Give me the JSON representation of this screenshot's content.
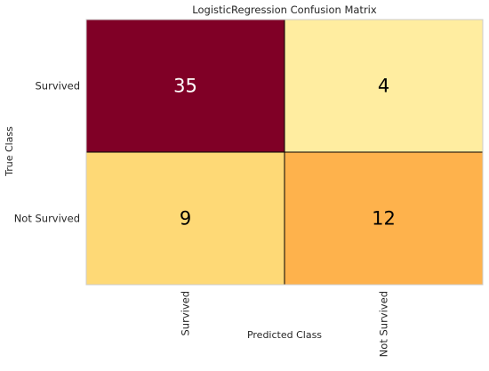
{
  "chart_data": {
    "type": "heatmap",
    "title": "LogisticRegression Confusion Matrix",
    "xlabel": "Predicted Class",
    "ylabel": "True Class",
    "x_categories": [
      "Survived",
      "Not Survived"
    ],
    "y_categories": [
      "Survived",
      "Not Survived"
    ],
    "values": [
      [
        35,
        4
      ],
      [
        9,
        12
      ]
    ],
    "colormap": "YlOrRd",
    "cell_colors": [
      [
        "#800026",
        "#ffeda0"
      ],
      [
        "#fed976",
        "#feb24c"
      ]
    ],
    "cell_text_colors": [
      [
        "#ffffff",
        "#000000"
      ],
      [
        "#000000",
        "#000000"
      ]
    ],
    "grid": false
  }
}
